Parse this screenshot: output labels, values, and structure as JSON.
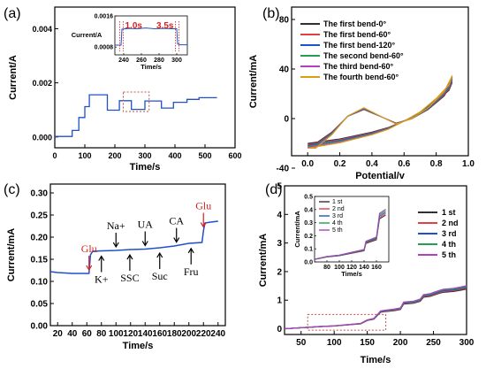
{
  "panel_labels": [
    "(a)",
    "(b)",
    "(c)",
    "(d)"
  ],
  "chart_data": [
    {
      "panel": "(a)",
      "type": "line",
      "xlabel": "Time/s",
      "ylabel": "Current/A",
      "xlim": [
        0,
        600
      ],
      "ylim": [
        -0.0004,
        0.0048
      ],
      "xticks": [
        "0",
        "100",
        "200",
        "300",
        "400",
        "500",
        "600"
      ],
      "yticks": [
        "0.000",
        "0.002",
        "0.004"
      ],
      "series": [
        {
          "color": "#2050c8",
          "x": [
            0,
            58,
            58,
            80,
            80,
            100,
            100,
            115,
            115,
            175,
            175,
            215,
            215,
            255,
            255,
            300,
            300,
            355,
            355,
            395,
            395,
            440,
            440,
            480,
            480,
            540
          ],
          "y": [
            2e-05,
            2e-05,
            0.00024,
            0.00024,
            0.00072,
            0.00072,
            0.00112,
            0.00112,
            0.00156,
            0.00156,
            0.00099,
            0.00099,
            0.00134,
            0.00134,
            0.00102,
            0.00102,
            0.00133,
            0.00133,
            0.00107,
            0.00107,
            0.00128,
            0.00128,
            0.00139,
            0.00139,
            0.00145,
            0.00145
          ]
        }
      ],
      "inset": {
        "xlabel": "Time/s",
        "ylabel": "Current/A",
        "xlim": [
          230,
          312
        ],
        "ylim": [
          0.0006,
          0.0016
        ],
        "xticks": [
          "240",
          "260",
          "280",
          "300"
        ],
        "yticks": [
          "0.0008",
          "0.0016"
        ],
        "annotations": [
          "1.0s",
          "3.5s"
        ],
        "x": [
          230,
          237,
          238,
          245,
          255,
          265,
          275,
          285,
          295,
          300,
          301,
          304,
          312
        ],
        "y": [
          0.00085,
          0.00085,
          0.00126,
          0.00128,
          0.00127,
          0.00129,
          0.00127,
          0.00128,
          0.00127,
          0.00127,
          0.00088,
          0.00086,
          0.00086
        ]
      }
    },
    {
      "panel": "(b)",
      "type": "line",
      "xlabel": "Potential/v",
      "ylabel": "Current/mA",
      "xlim": [
        -0.1,
        1.0
      ],
      "ylim": [
        -30,
        90
      ],
      "xticks": [
        "0.0",
        "0.2",
        "0.4",
        "0.6",
        "0.8",
        "1.0"
      ],
      "yticks": [
        "-40",
        "0",
        "40",
        "80"
      ],
      "legend_position": "top-left",
      "series": [
        {
          "name": "The first bend-0°",
          "color": "#303030"
        },
        {
          "name": "The first bend-60°",
          "color": "#e04040"
        },
        {
          "name": "The first bend-120°",
          "color": "#2050c8"
        },
        {
          "name": "The second bend-60°",
          "color": "#20a050"
        },
        {
          "name": "The third bend-60°",
          "color": "#b040c0"
        },
        {
          "name": "The fourth bend-60°",
          "color": "#d8a010"
        }
      ],
      "cv_x": [
        0.0,
        0.05,
        0.1,
        0.2,
        0.3,
        0.4,
        0.5,
        0.6,
        0.7,
        0.8,
        0.88,
        0.9,
        0.85,
        0.75,
        0.65,
        0.55,
        0.45,
        0.35,
        0.25,
        0.15,
        0.05,
        0.0
      ],
      "cv_y": [
        -22,
        -21,
        -20,
        -18,
        -15,
        -12,
        -8,
        -2,
        5,
        15,
        25,
        32,
        20,
        8,
        0,
        -4,
        2,
        8,
        2,
        -12,
        -22,
        -22
      ]
    },
    {
      "panel": "(c)",
      "type": "line",
      "xlabel": "Time/s",
      "ylabel": "Current/mA",
      "xlim": [
        10,
        250
      ],
      "ylim": [
        0.0,
        0.32
      ],
      "xticks": [
        "20",
        "40",
        "60",
        "80",
        "100",
        "120",
        "140",
        "160",
        "180",
        "200",
        "220",
        "240"
      ],
      "yticks": [
        "0.00",
        "0.05",
        "0.10",
        "0.15",
        "0.20",
        "0.25",
        "0.30"
      ],
      "series": [
        {
          "color": "#2050c8",
          "x": [
            10,
            20,
            40,
            63,
            65,
            68,
            80,
            100,
            120,
            140,
            160,
            180,
            200,
            218,
            220,
            222,
            230,
            240
          ],
          "y": [
            0.122,
            0.12,
            0.118,
            0.118,
            0.16,
            0.168,
            0.169,
            0.17,
            0.172,
            0.173,
            0.176,
            0.18,
            0.186,
            0.188,
            0.215,
            0.232,
            0.234,
            0.236
          ]
        }
      ],
      "annotations": [
        {
          "label": "Glu",
          "x": 63,
          "position": "above",
          "color": "#d42020"
        },
        {
          "label": "K+",
          "x": 80,
          "position": "below",
          "color": "#000000"
        },
        {
          "label": "Na+",
          "x": 100,
          "position": "above",
          "color": "#000000"
        },
        {
          "label": "SSC",
          "x": 119,
          "position": "below",
          "color": "#000000"
        },
        {
          "label": "UA",
          "x": 140,
          "position": "above",
          "color": "#000000"
        },
        {
          "label": "Suc",
          "x": 160,
          "position": "below",
          "color": "#000000"
        },
        {
          "label": "CA",
          "x": 183,
          "position": "above",
          "color": "#000000"
        },
        {
          "label": "Fru",
          "x": 203,
          "position": "below",
          "color": "#000000"
        },
        {
          "label": "Glu",
          "x": 220,
          "position": "above",
          "color": "#d42020"
        }
      ]
    },
    {
      "panel": "(d)",
      "type": "line",
      "xlabel": "Time/s",
      "ylabel": "Current/mA",
      "xlim": [
        25,
        300
      ],
      "ylim": [
        -0.2,
        5.0
      ],
      "xticks": [
        "50",
        "100",
        "150",
        "200",
        "250",
        "300"
      ],
      "yticks": [
        "0",
        "1",
        "2",
        "3",
        "4",
        "5"
      ],
      "legend_position": "right",
      "series": [
        {
          "name": "1 st",
          "color": "#303030"
        },
        {
          "name": "2 nd",
          "color": "#e04040"
        },
        {
          "name": "3 rd",
          "color": "#2050c8"
        },
        {
          "name": "4 th",
          "color": "#20a050"
        },
        {
          "name": "5 th",
          "color": "#b040c0"
        }
      ],
      "x": [
        25,
        60,
        80,
        100,
        120,
        140,
        150,
        160,
        170,
        175,
        190,
        200,
        205,
        220,
        230,
        235,
        245,
        250,
        260,
        265,
        280,
        290,
        300
      ],
      "y": [
        0.0,
        0.05,
        0.08,
        0.1,
        0.14,
        0.18,
        0.3,
        0.35,
        0.6,
        0.62,
        0.66,
        0.7,
        0.9,
        0.93,
        1.0,
        1.15,
        1.18,
        1.22,
        1.3,
        1.33,
        1.36,
        1.4,
        1.45
      ],
      "inset": {
        "xlim": [
          60,
          180
        ],
        "ylim": [
          0.0,
          0.5
        ],
        "xticks": [
          "80",
          "100",
          "120",
          "140",
          "160"
        ],
        "yticks": [
          "0.0",
          "0.1",
          "0.2",
          "0.3",
          "0.4",
          "0.5"
        ],
        "xlabel": "Time/s",
        "ylabel": "Current/mA",
        "legend_position": "top-left",
        "x": [
          60,
          80,
          100,
          120,
          140,
          143,
          160,
          165,
          175
        ],
        "y": [
          0.02,
          0.04,
          0.05,
          0.07,
          0.09,
          0.15,
          0.18,
          0.35,
          0.38
        ]
      }
    }
  ]
}
